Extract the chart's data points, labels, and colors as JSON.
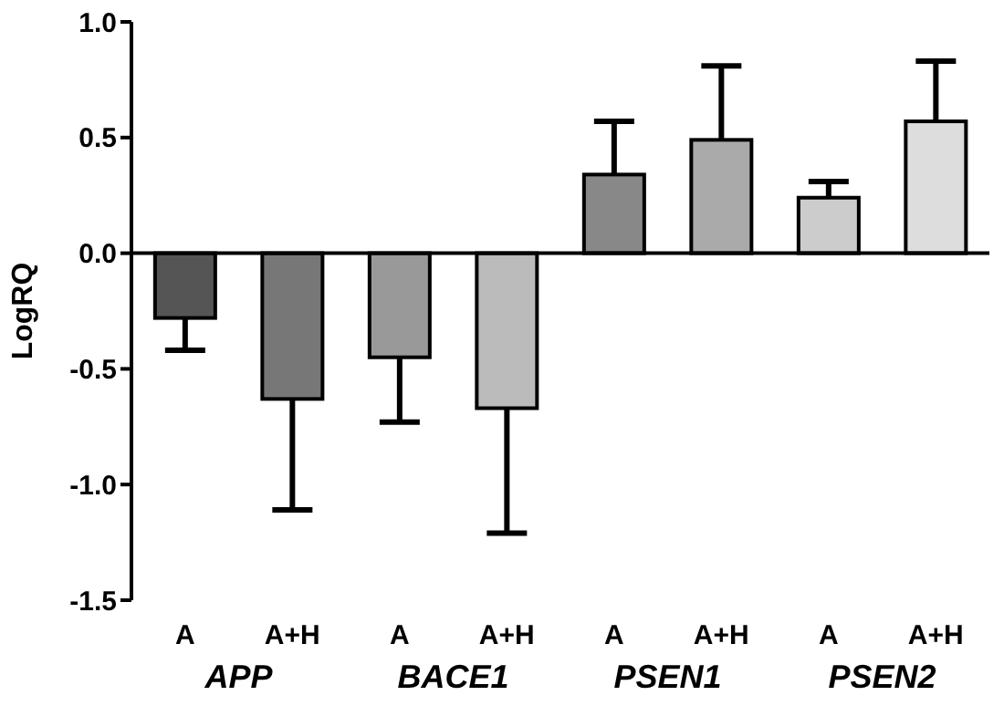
{
  "chart_data": {
    "type": "bar",
    "ylabel": "LogRQ",
    "categories": [
      "A",
      "A+H",
      "A",
      "A+H",
      "A",
      "A+H",
      "A",
      "A+H"
    ],
    "values": [
      -0.28,
      -0.63,
      -0.45,
      -0.67,
      0.34,
      0.49,
      0.24,
      0.57
    ],
    "errors": [
      [
        -0.42,
        -0.28
      ],
      [
        -1.11,
        -0.63
      ],
      [
        -0.73,
        -0.45
      ],
      [
        -1.21,
        -0.67
      ],
      [
        0.34,
        0.57
      ],
      [
        0.49,
        0.81
      ],
      [
        0.24,
        0.31
      ],
      [
        0.57,
        0.83
      ]
    ],
    "ref_lines": [
      {
        "axis": "y",
        "value": 0,
        "color": "#000000"
      }
    ],
    "colors": [
      "#555555",
      "#777777",
      "#999999",
      "#bbbbbb",
      "#888888",
      "#aaaaaa",
      "#cccccc",
      "#dddddd"
    ],
    "annotations": [
      "APP",
      "BACE1",
      "PSEN1",
      "PSEN2"
    ],
    "ylim": [
      -1.5,
      1
    ],
    "yticks": [
      {
        "value": -1.5,
        "label": "-1.5"
      },
      {
        "value": -1,
        "label": "-1.0"
      },
      {
        "value": -0.5,
        "label": "-0.5"
      },
      {
        "value": 0,
        "label": "0.0"
      },
      {
        "value": 0.5,
        "label": "0.5"
      },
      {
        "value": 1,
        "label": "1.0"
      }
    ],
    "grid": false,
    "legend": false
  }
}
